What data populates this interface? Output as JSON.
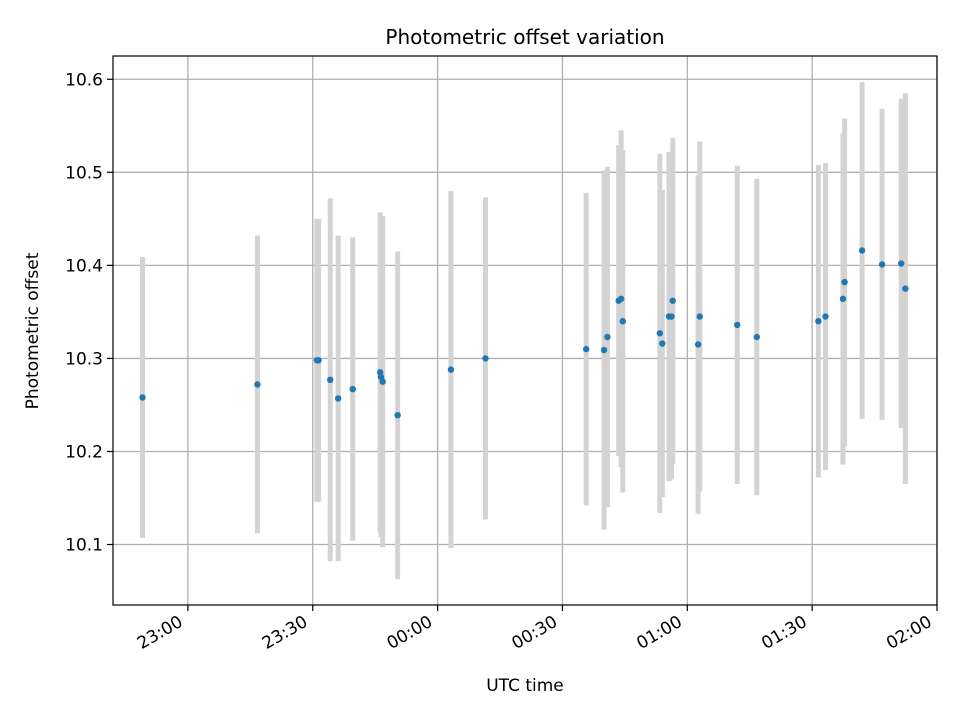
{
  "chart_data": {
    "type": "scatter",
    "title": "Photometric offset variation",
    "xlabel": "UTC time",
    "ylabel": "Photometric offset",
    "x_tick_labels": [
      "23:00",
      "23:30",
      "00:00",
      "00:30",
      "01:00",
      "01:30",
      "02:00"
    ],
    "y_tick_labels": [
      "10.1",
      "10.2",
      "10.3",
      "10.4",
      "10.5",
      "10.6"
    ],
    "grid": true,
    "colors": {
      "point": "#1f77b4",
      "errorbar": "#d3d3d3",
      "grid": "#b0b0b0"
    },
    "xlim": [
      "22:42",
      "02:00"
    ],
    "ylim": [
      10.035,
      10.625
    ],
    "x_unit": "minutes past 22:00 UTC",
    "points": [
      {
        "x": 49.1,
        "y": 10.258,
        "yerr": 0.151
      },
      {
        "x": 76.7,
        "y": 10.272,
        "yerr": 0.16
      },
      {
        "x": 91.0,
        "y": 10.298,
        "yerr": 0.152
      },
      {
        "x": 91.4,
        "y": 10.298,
        "yerr": 0.152
      },
      {
        "x": 94.2,
        "y": 10.277,
        "yerr": 0.195
      },
      {
        "x": 96.1,
        "y": 10.257,
        "yerr": 0.175
      },
      {
        "x": 99.6,
        "y": 10.267,
        "yerr": 0.163
      },
      {
        "x": 106.2,
        "y": 10.285,
        "yerr": 0.172
      },
      {
        "x": 106.4,
        "y": 10.28,
        "yerr": 0.172
      },
      {
        "x": 106.8,
        "y": 10.275,
        "yerr": 0.178
      },
      {
        "x": 110.4,
        "y": 10.239,
        "yerr": 0.176
      },
      {
        "x": 123.2,
        "y": 10.288,
        "yerr": 0.192
      },
      {
        "x": 131.5,
        "y": 10.3,
        "yerr": 0.173
      },
      {
        "x": 155.7,
        "y": 10.31,
        "yerr": 0.168
      },
      {
        "x": 160.0,
        "y": 10.309,
        "yerr": 0.193
      },
      {
        "x": 160.8,
        "y": 10.323,
        "yerr": 0.183
      },
      {
        "x": 163.5,
        "y": 10.362,
        "yerr": 0.167
      },
      {
        "x": 164.1,
        "y": 10.364,
        "yerr": 0.181
      },
      {
        "x": 164.5,
        "y": 10.34,
        "yerr": 0.184
      },
      {
        "x": 173.4,
        "y": 10.327,
        "yerr": 0.193
      },
      {
        "x": 174.0,
        "y": 10.316,
        "yerr": 0.165
      },
      {
        "x": 175.6,
        "y": 10.345,
        "yerr": 0.177
      },
      {
        "x": 176.2,
        "y": 10.345,
        "yerr": 0.175
      },
      {
        "x": 176.5,
        "y": 10.362,
        "yerr": 0.175
      },
      {
        "x": 182.6,
        "y": 10.315,
        "yerr": 0.182
      },
      {
        "x": 183.0,
        "y": 10.345,
        "yerr": 0.188
      },
      {
        "x": 192.0,
        "y": 10.336,
        "yerr": 0.171
      },
      {
        "x": 196.7,
        "y": 10.323,
        "yerr": 0.17
      },
      {
        "x": 211.5,
        "y": 10.34,
        "yerr": 0.168
      },
      {
        "x": 213.2,
        "y": 10.345,
        "yerr": 0.165
      },
      {
        "x": 217.4,
        "y": 10.364,
        "yerr": 0.178
      },
      {
        "x": 217.8,
        "y": 10.382,
        "yerr": 0.176
      },
      {
        "x": 222.0,
        "y": 10.416,
        "yerr": 0.181
      },
      {
        "x": 226.8,
        "y": 10.401,
        "yerr": 0.167
      },
      {
        "x": 231.4,
        "y": 10.402,
        "yerr": 0.177
      },
      {
        "x": 232.4,
        "y": 10.375,
        "yerr": 0.21
      }
    ]
  }
}
